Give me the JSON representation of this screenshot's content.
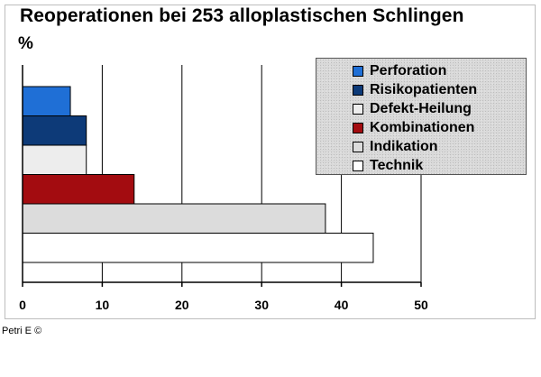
{
  "chart_data": {
    "type": "bar",
    "orientation": "horizontal",
    "title": "Reoperationen bei 253 alloplastischen Schlingen",
    "ylabel": "%",
    "xlabel": "",
    "categories": [
      "Perforation",
      "Risikopatienten",
      "Defekt-Heilung",
      "Kombinationen",
      "Indikation",
      "Technik"
    ],
    "values": [
      6,
      8,
      8,
      14,
      38,
      44
    ],
    "colors": [
      "#1f6fd6",
      "#0d3a78",
      "#ededed",
      "#a30c10",
      "#dcdcdc",
      "#ffffff"
    ],
    "xlim": [
      0,
      50
    ],
    "xticks": [
      "0",
      "10",
      "20",
      "30",
      "40",
      "50"
    ],
    "grid": true,
    "legend_position": "top-right"
  },
  "credit": "Petri E ©"
}
